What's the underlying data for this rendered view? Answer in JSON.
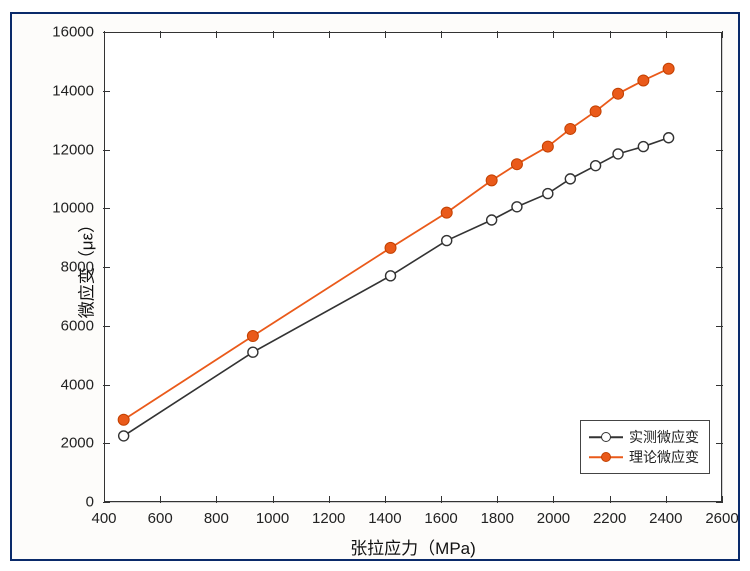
{
  "chart": {
    "type": "line",
    "background_color": "#fdfcfa",
    "plot_background": "#ffffff",
    "frame_border_color": "#0a2a6a",
    "axis_color": "#333333",
    "grid_color": "#d0d0d0",
    "xlabel": "张拉应力（MPa)",
    "ylabel": "微应变（με）",
    "label_fontsize": 17,
    "tick_fontsize": 15,
    "xlim": [
      400,
      2600
    ],
    "ylim": [
      0,
      16000
    ],
    "xticks": [
      400,
      600,
      800,
      1000,
      1200,
      1400,
      1600,
      1800,
      2000,
      2200,
      2400,
      2600
    ],
    "yticks": [
      0,
      2000,
      4000,
      6000,
      8000,
      10000,
      12000,
      14000,
      16000
    ],
    "series": [
      {
        "name": "实测微应变",
        "line_color": "#333333",
        "line_width": 1.6,
        "marker_shape": "circle",
        "marker_size": 10,
        "marker_fill": "#ffffff",
        "marker_stroke": "#333333",
        "marker_stroke_width": 1.4,
        "x": [
          470,
          930,
          1420,
          1620,
          1780,
          1870,
          1980,
          2060,
          2150,
          2230,
          2320,
          2410
        ],
        "y": [
          2250,
          5100,
          7700,
          8900,
          9600,
          10050,
          10500,
          11000,
          11450,
          11850,
          12100,
          12400
        ]
      },
      {
        "name": "理论微应变",
        "line_color": "#ea5a1a",
        "line_width": 1.8,
        "marker_shape": "circle",
        "marker_size": 11,
        "marker_fill": "#ea5a1a",
        "marker_stroke": "#c24000",
        "marker_stroke_width": 1,
        "x": [
          470,
          930,
          1420,
          1620,
          1780,
          1870,
          1980,
          2060,
          2150,
          2230,
          2320,
          2410
        ],
        "y": [
          2800,
          5650,
          8650,
          9850,
          10950,
          11500,
          12100,
          12700,
          13300,
          13900,
          14350,
          14750
        ]
      }
    ],
    "legend": {
      "position": "bottom-right",
      "border_color": "#444444",
      "background": "#ffffff",
      "fontsize": 14,
      "items": [
        {
          "label": "实测微应变",
          "series_index": 0
        },
        {
          "label": "理论微应变",
          "series_index": 1
        }
      ]
    }
  }
}
